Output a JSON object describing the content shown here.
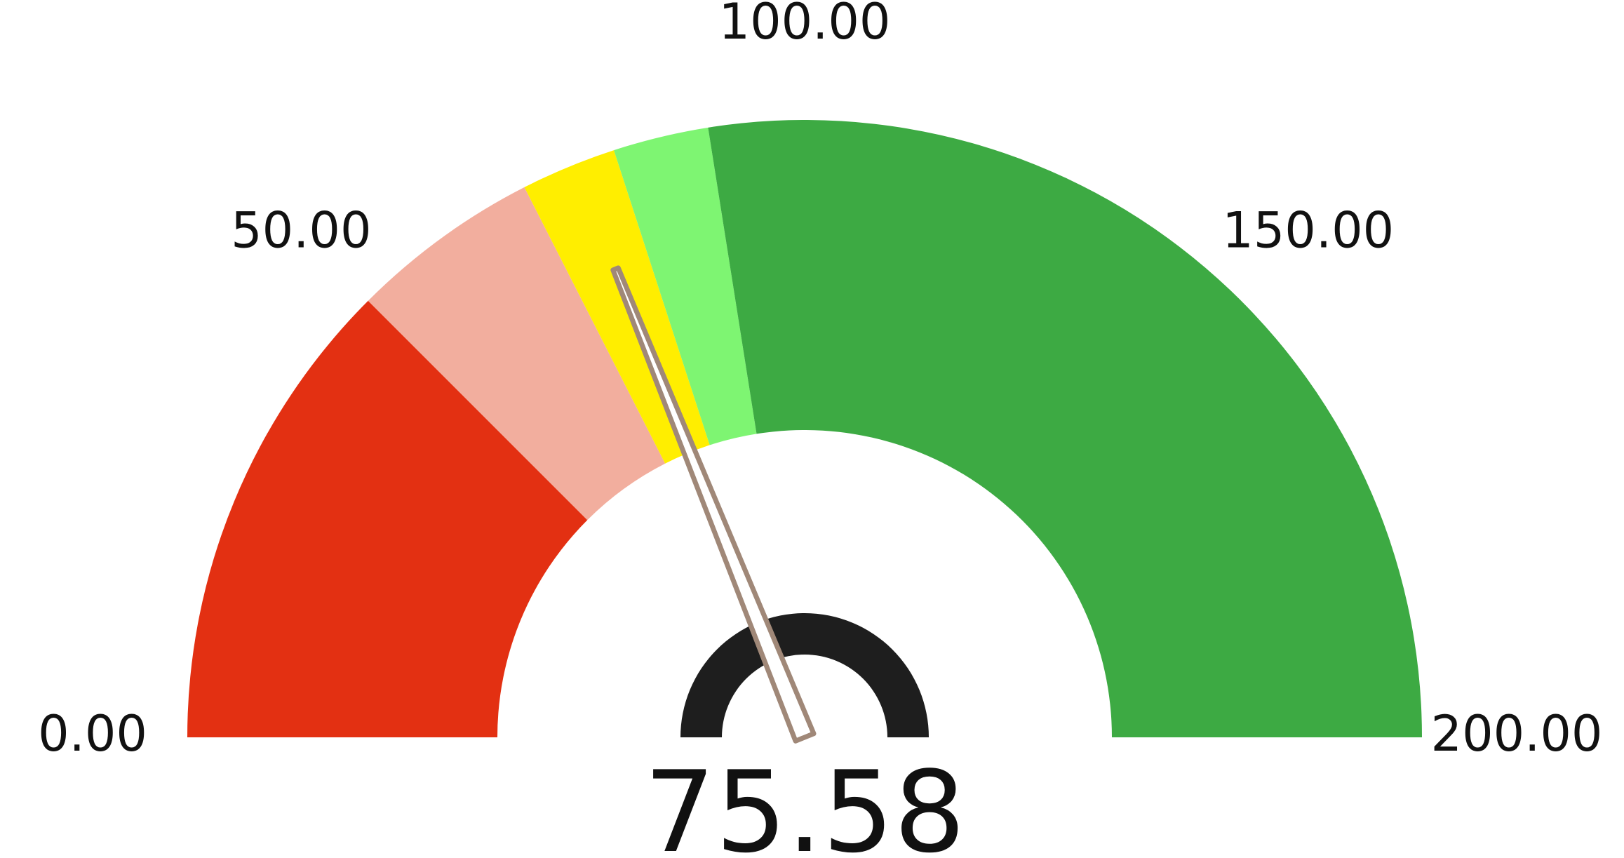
{
  "chart_data": {
    "type": "gauge",
    "value": 75.58,
    "value_label": "75.58",
    "range": [
      0,
      200
    ],
    "ticks": [
      {
        "value": 0,
        "label": "0.00"
      },
      {
        "value": 50,
        "label": "50.00"
      },
      {
        "value": 100,
        "label": "100.00"
      },
      {
        "value": 150,
        "label": "150.00"
      },
      {
        "value": 200,
        "label": "200.00"
      }
    ],
    "bands": [
      {
        "from": 0,
        "to": 50,
        "color": "#e33012"
      },
      {
        "from": 50,
        "to": 70,
        "color": "#f2ae9e"
      },
      {
        "from": 70,
        "to": 80,
        "color": "#ffee00"
      },
      {
        "from": 80,
        "to": 90,
        "color": "#7ef572"
      },
      {
        "from": 90,
        "to": 200,
        "color": "#3daa43"
      }
    ],
    "needle_color": "#a08878"
  }
}
